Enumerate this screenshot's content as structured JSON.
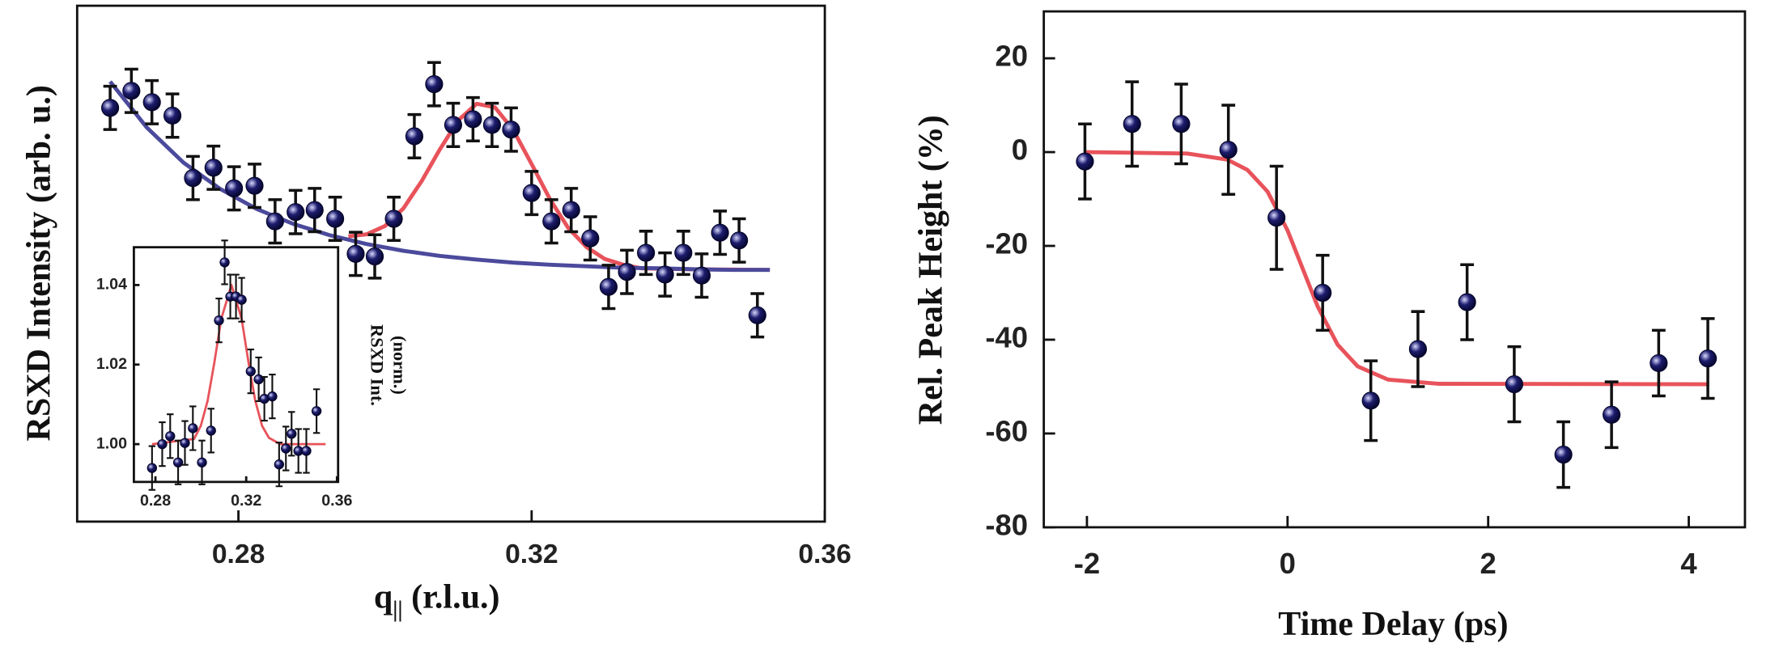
{
  "chart_data": [
    {
      "type": "scatter",
      "ylabel": "RSXD Intensity (arb. u.)",
      "xlabel": [
        "q",
        "||",
        " (r.l.u.)"
      ],
      "xlim": [
        0.258,
        0.36
      ],
      "ylim": [
        0,
        100
      ],
      "xticks": [
        0.28,
        0.32,
        0.36
      ],
      "series": [
        {
          "color": "#1c1c6e",
          "x": [
            0.2625,
            0.2654,
            0.2682,
            0.271,
            0.2738,
            0.2766,
            0.2794,
            0.2822,
            0.285,
            0.2878,
            0.2904,
            0.2932,
            0.296,
            0.2986,
            0.3012,
            0.304,
            0.3067,
            0.3093,
            0.312,
            0.3146,
            0.3172,
            0.32,
            0.3227,
            0.3254,
            0.328,
            0.3305,
            0.333,
            0.3356,
            0.3382,
            0.3407,
            0.3432,
            0.3457,
            0.3483,
            0.3508
          ],
          "values": [
            80.2,
            83.5,
            81.3,
            78.7,
            66.6,
            68.6,
            64.6,
            65.1,
            58.2,
            60.0,
            60.4,
            58.7,
            51.9,
            51.4,
            58.7,
            74.7,
            84.8,
            76.9,
            78.0,
            76.9,
            76.0,
            63.7,
            58.2,
            60.4,
            54.9,
            45.5,
            48.4,
            52.1,
            47.9,
            52.1,
            47.7,
            56.0,
            54.5,
            40.0
          ],
          "errors": [
            4.2,
            4.2,
            4.2,
            4.2,
            4.2,
            4.2,
            4.2,
            4.2,
            4.2,
            4.2,
            4.2,
            4.2,
            4.2,
            4.2,
            4.2,
            4.2,
            4.2,
            4.2,
            4.2,
            4.2,
            4.2,
            4.2,
            4.2,
            4.2,
            4.2,
            4.2,
            4.2,
            4.2,
            4.2,
            4.2,
            4.2,
            4.2,
            4.2,
            4.2
          ]
        }
      ],
      "fits": [
        {
          "color": "#e8535b",
          "x": [
            0.295,
            0.2975,
            0.3,
            0.3025,
            0.305,
            0.3075,
            0.31,
            0.3125,
            0.315,
            0.3175,
            0.32,
            0.3225,
            0.325,
            0.3275,
            0.33,
            0.3325,
            0.335,
            0.3425,
            0.3525
          ],
          "values": [
            55.3,
            55.7,
            57.3,
            60.7,
            66.0,
            72.2,
            77.8,
            81.0,
            80.3,
            75.9,
            69.3,
            62.5,
            56.9,
            53.2,
            50.9,
            49.8,
            49.1,
            48.9,
            48.8
          ]
        },
        {
          "color": "#4b4a9c",
          "x": [
            0.2625,
            0.2675,
            0.2725,
            0.2775,
            0.2825,
            0.2875,
            0.2925,
            0.2975,
            0.3025,
            0.3075,
            0.3125,
            0.3175,
            0.3225,
            0.3275,
            0.3325,
            0.3375,
            0.3425,
            0.3475,
            0.3525
          ],
          "values": [
            85.3,
            76.4,
            69.6,
            64.5,
            60.6,
            57.7,
            55.5,
            53.8,
            52.5,
            51.5,
            50.8,
            50.2,
            49.8,
            49.5,
            49.2,
            49.1,
            48.9,
            48.8,
            48.8
          ]
        }
      ]
    },
    {
      "type": "scatter",
      "ylabel": [
        "RSXD Int.",
        "(norm.)"
      ],
      "xlim": [
        0.2705,
        0.3605
      ],
      "ylim": [
        0.9905,
        1.0495
      ],
      "xticks": [
        0.28,
        0.32,
        0.36
      ],
      "yticks": [
        {
          "value": 1,
          "label": "1.00"
        },
        1.02,
        1.04
      ],
      "series": [
        {
          "color": "#1c1c6e",
          "x": [
            0.2785,
            0.283,
            0.2865,
            0.29,
            0.293,
            0.2965,
            0.3005,
            0.3045,
            0.308,
            0.3105,
            0.313,
            0.3155,
            0.318,
            0.322,
            0.3255,
            0.328,
            0.3315,
            0.3345,
            0.3375,
            0.34,
            0.343,
            0.3465,
            0.351
          ],
          "values": [
            0.994,
            1.0,
            1.002,
            0.9954,
            1.0003,
            1.004,
            0.9954,
            1.0034,
            1.0311,
            1.0457,
            1.0371,
            1.0371,
            1.0363,
            1.0183,
            1.0163,
            1.0114,
            1.012,
            0.9949,
            0.9989,
            1.0026,
            0.9983,
            0.9983,
            1.0083
          ],
          "errors": [
            0.0055,
            0.0055,
            0.0055,
            0.0055,
            0.0055,
            0.0055,
            0.0055,
            0.0055,
            0.0055,
            0.0055,
            0.0055,
            0.0055,
            0.0055,
            0.0055,
            0.0055,
            0.0055,
            0.0055,
            0.0055,
            0.0055,
            0.0055,
            0.0055,
            0.0055,
            0.0055
          ]
        }
      ],
      "fits": [
        {
          "color": "#e8535b",
          "x": [
            0.2785,
            0.297,
            0.3,
            0.303,
            0.306,
            0.309,
            0.3135,
            0.318,
            0.321,
            0.324,
            0.327,
            0.33,
            0.335,
            0.355
          ],
          "values": [
            1.0,
            1.0013,
            1.0046,
            1.0109,
            1.0206,
            1.0315,
            1.04,
            1.0315,
            1.0206,
            1.0109,
            1.0046,
            1.0016,
            1.0,
            1.0
          ]
        }
      ]
    },
    {
      "type": "scatter",
      "ylabel": "Rel. Peak Height (%)",
      "xlabel": "Time Delay (ps)",
      "xlim": [
        -2.43,
        4.56
      ],
      "ylim": [
        -80,
        30
      ],
      "xticks": [
        -2,
        0,
        2,
        4
      ],
      "yticks": [
        -80,
        -60,
        -40,
        -20,
        0,
        20
      ],
      "series": [
        {
          "color": "#1c1c6e",
          "x": [
            -2.02,
            -1.55,
            -1.06,
            -0.59,
            -0.11,
            0.35,
            0.83,
            1.3,
            1.79,
            2.26,
            2.75,
            3.23,
            3.7,
            4.19
          ],
          "values": [
            -2,
            6,
            6,
            0.5,
            -14,
            -30,
            -53,
            -42,
            -32,
            -49.5,
            -64.5,
            -56,
            -45,
            -44
          ],
          "errors": [
            8,
            9,
            8.5,
            9.5,
            11,
            8,
            8.5,
            8,
            8,
            8,
            7,
            7,
            7,
            8.5
          ]
        }
      ],
      "fits": [
        {
          "color": "#e8535b",
          "x": [
            -2.02,
            -1.0,
            -0.6,
            -0.4,
            -0.2,
            0,
            0.15,
            0.3,
            0.5,
            0.7,
            1.0,
            1.5,
            4.19
          ],
          "values": [
            0,
            -0.3,
            -1.6,
            -3.8,
            -8.4,
            -16.7,
            -24.8,
            -32.9,
            -41.1,
            -45.7,
            -48.5,
            -49.4,
            -49.5
          ]
        }
      ]
    }
  ]
}
